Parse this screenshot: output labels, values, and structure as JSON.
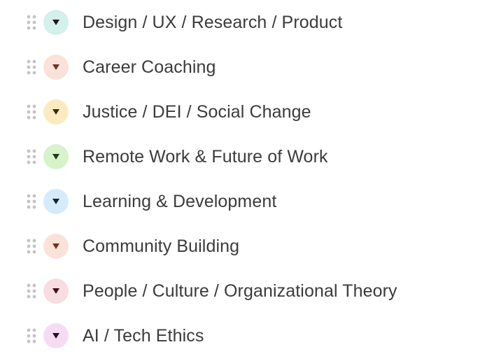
{
  "categories": [
    {
      "label": "Design / UX / Research / Product",
      "icon": "caret-down-icon",
      "bg_color": "#d3f1ea",
      "arrow_color": "#1b1b1b"
    },
    {
      "label": "Career Coaching",
      "icon": "caret-down-icon",
      "bg_color": "#fbe2d8",
      "arrow_color": "#6b3520"
    },
    {
      "label": "Justice / DEI / Social Change",
      "icon": "caret-down-icon",
      "bg_color": "#fcebc1",
      "arrow_color": "#3a2c10"
    },
    {
      "label": "Remote Work & Future of Work",
      "icon": "caret-down-icon",
      "bg_color": "#d8f3cc",
      "arrow_color": "#1f3a14"
    },
    {
      "label": "Learning & Development",
      "icon": "caret-down-icon",
      "bg_color": "#d6ebf9",
      "arrow_color": "#102536"
    },
    {
      "label": "Community Building",
      "icon": "caret-down-icon",
      "bg_color": "#fbe2d8",
      "arrow_color": "#6b3520"
    },
    {
      "label": "People / Culture / Organizational Theory",
      "icon": "caret-down-icon",
      "bg_color": "#f9dde2",
      "arrow_color": "#3a1018"
    },
    {
      "label": "AI / Tech Ethics",
      "icon": "caret-down-icon",
      "bg_color": "#f5dcf3",
      "arrow_color": "#2b0f2a"
    }
  ],
  "drag_icon": "drag-handle-icon",
  "colors": {
    "text": "#3b3b3b",
    "drag_dots": "#c4c4c4"
  }
}
